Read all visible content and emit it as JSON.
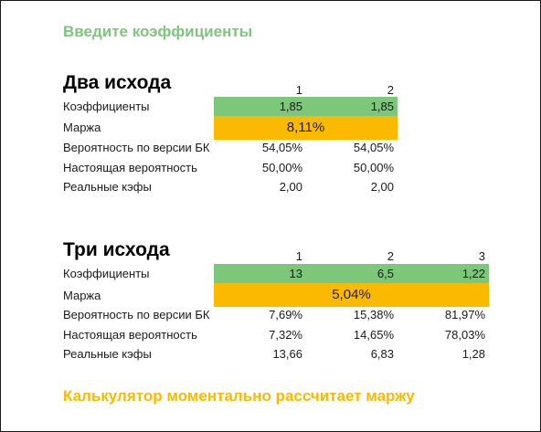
{
  "hints": {
    "top": "Введите коэффициенты",
    "bottom": "Калькулятор моментально рассчитает маржу"
  },
  "colors": {
    "input_green": "#7dc77a",
    "margin_yellow": "#fbb900"
  },
  "two_outcomes": {
    "title": "Два исхода",
    "headers": [
      "1",
      "2"
    ],
    "labels": {
      "odds": "Коэффициенты",
      "margin": "Маржа",
      "bk_probability": "Вероятность по версии БК",
      "true_probability": "Настоящая вероятность",
      "real_odds": "Реальные кэфы"
    },
    "odds": [
      "1,85",
      "1,85"
    ],
    "margin": "8,11%",
    "bk_probability": [
      "54,05%",
      "54,05%"
    ],
    "true_probability": [
      "50,00%",
      "50,00%"
    ],
    "real_odds": [
      "2,00",
      "2,00"
    ]
  },
  "three_outcomes": {
    "title": "Три исхода",
    "headers": [
      "1",
      "2",
      "3"
    ],
    "labels": {
      "odds": "Коэффициенты",
      "margin": "Маржа",
      "bk_probability": "Вероятность по версии БК",
      "true_probability": "Настоящая вероятность",
      "real_odds": "Реальные кэфы"
    },
    "odds": [
      "13",
      "6,5",
      "1,22"
    ],
    "margin": "5,04%",
    "bk_probability": [
      "7,69%",
      "15,38%",
      "81,97%"
    ],
    "true_probability": [
      "7,32%",
      "14,65%",
      "78,03%"
    ],
    "real_odds": [
      "13,66",
      "6,83",
      "1,28"
    ]
  }
}
